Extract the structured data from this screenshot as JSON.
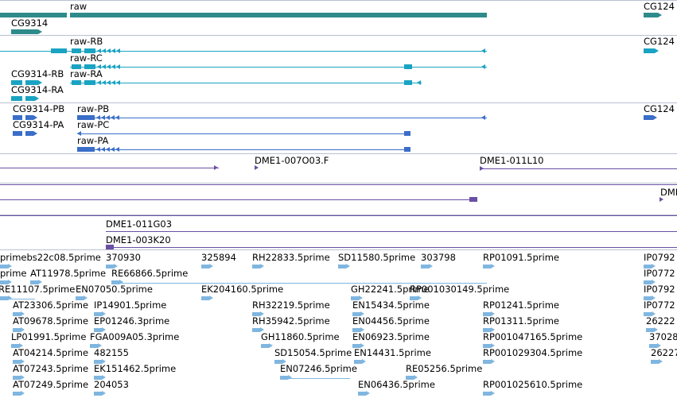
{
  "colors": {
    "gene": "#2e8b8b",
    "transcript": "#1aa3c2",
    "cds": "#3a6ec8",
    "clone": "#6a4fa5",
    "est": "#7fb6e0"
  },
  "gene_track": {
    "labels": [
      "raw",
      "CG9314",
      "CG124"
    ]
  },
  "transcript_track": {
    "labels": [
      "raw-RB",
      "CG124",
      "raw-RC",
      "CG9314-RB",
      "raw-RA",
      "CG9314-RA"
    ]
  },
  "cds_track": {
    "labels": [
      "CG9314-PB",
      "raw-PB",
      "CG124",
      "CG9314-PA",
      "raw-PC",
      "raw-PA"
    ]
  },
  "clone_track": {
    "labels": [
      "DME1-007O03.F",
      "DME1-011L10",
      "DMI",
      "DME1-011G03",
      "DME1-003K20"
    ]
  },
  "est_track": {
    "rows": [
      [
        "primebs22c08.5prime",
        "370930",
        "325894",
        "RH22833.5prime",
        "SD11580.5prime",
        "303798",
        "RP01091.5prime",
        "IP0792"
      ],
      [
        "prime",
        "AT11978.5prime",
        "RE66866.5prime",
        "IP0772"
      ],
      [
        "RE11107.5prime",
        "EN07050.5prime",
        "EK204160.5prime",
        "GH22241.5prime",
        "RP001030149.5prime",
        "IP0792"
      ],
      [
        "AT23306.5prime",
        "IP14901.5prime",
        "RH32219.5prime",
        "EN15434.5prime",
        "RP01241.5prime",
        "IP0772"
      ],
      [
        "AT09678.5prime",
        "EP01246.3prime",
        "RH35942.5prime",
        "EN04456.5prime",
        "RP01311.5prime",
        "26222"
      ],
      [
        "LP01991.5prime",
        "FGA009A05.3prime",
        "GH11860.5prime",
        "EN06923.5prime",
        "RP001047165.5prime",
        "37028"
      ],
      [
        "AT04214.5prime",
        "482155",
        "SD15054.5prime",
        "EN14431.5prime",
        "RP001029304.5prime",
        "26227"
      ],
      [
        "AT07243.5prime",
        "EK151462.5prime",
        "EN07246.5prime",
        "RE05256.5prime"
      ],
      [
        "AT07249.5prime",
        "204053",
        "EN06436.5prime",
        "RP001025610.5prime"
      ]
    ]
  }
}
